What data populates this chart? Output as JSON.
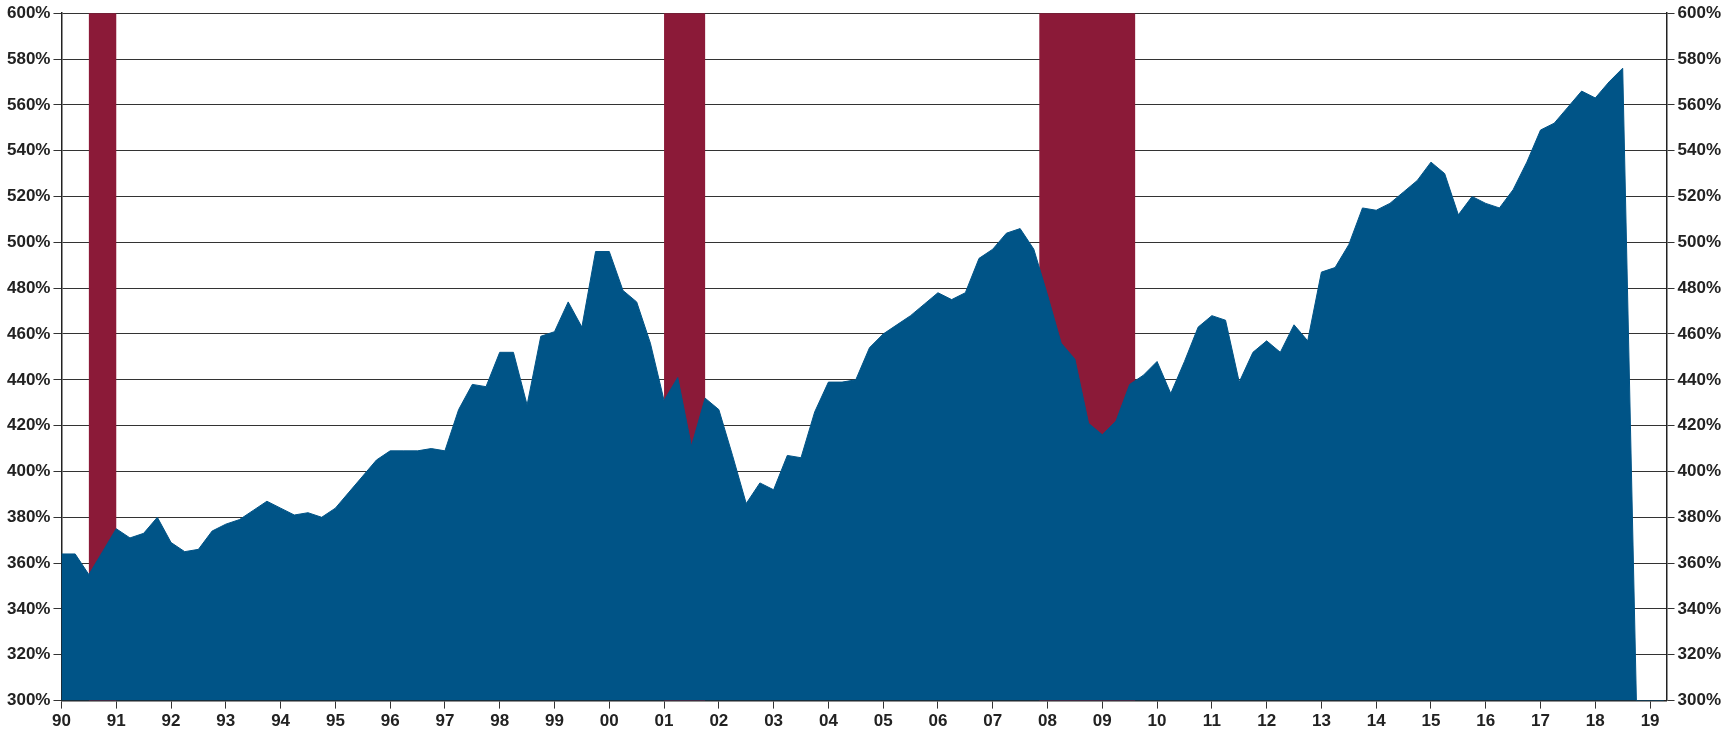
{
  "chart_data": {
    "type": "area",
    "x": [
      1990,
      1990.25,
      1990.5,
      1990.75,
      1991,
      1991.25,
      1991.5,
      1991.75,
      1992,
      1992.25,
      1992.5,
      1992.75,
      1993,
      1993.25,
      1993.5,
      1993.75,
      1994,
      1994.25,
      1994.5,
      1994.75,
      1995,
      1995.25,
      1995.5,
      1995.75,
      1996,
      1996.25,
      1996.5,
      1996.75,
      1997,
      1997.25,
      1997.5,
      1997.75,
      1998,
      1998.25,
      1998.5,
      1998.75,
      1999,
      1999.25,
      1999.5,
      1999.75,
      2000,
      2000.25,
      2000.5,
      2000.75,
      2001,
      2001.25,
      2001.5,
      2001.75,
      2002,
      2002.25,
      2002.5,
      2002.75,
      2003,
      2003.25,
      2003.5,
      2003.75,
      2004,
      2004.25,
      2004.5,
      2004.75,
      2005,
      2005.25,
      2005.5,
      2005.75,
      2006,
      2006.25,
      2006.5,
      2006.75,
      2007,
      2007.25,
      2007.5,
      2007.75,
      2008,
      2008.25,
      2008.5,
      2008.75,
      2009,
      2009.25,
      2009.5,
      2009.75,
      2010,
      2010.25,
      2010.5,
      2010.75,
      2011,
      2011.25,
      2011.5,
      2011.75,
      2012,
      2012.25,
      2012.5,
      2012.75,
      2013,
      2013.25,
      2013.5,
      2013.75,
      2014,
      2014.25,
      2014.5,
      2014.75,
      2015,
      2015.25,
      2015.5,
      2015.75,
      2016,
      2016.25,
      2016.5,
      2016.75,
      2017,
      2017.25,
      2017.5,
      2017.75,
      2018,
      2018.25,
      2018.5,
      2018.75,
      2019,
      2019.25
    ],
    "series": [
      {
        "color": "#005487",
        "values": [
          364,
          364,
          355,
          365,
          375,
          371,
          373,
          380,
          369,
          365,
          366,
          374,
          377,
          379,
          383,
          387,
          384,
          381,
          382,
          380,
          384,
          391,
          398,
          405,
          409,
          409,
          409,
          410,
          409,
          427,
          438,
          437,
          452,
          452,
          429,
          459,
          461,
          474,
          463,
          496,
          496,
          479,
          474,
          456,
          431,
          441,
          411,
          432,
          427,
          407,
          386,
          395,
          392,
          407,
          406,
          426,
          439,
          439,
          440,
          454,
          460,
          464,
          468,
          473,
          478,
          475,
          478,
          493,
          497,
          504,
          506,
          497,
          477,
          456,
          449,
          421,
          416,
          422,
          438,
          442,
          448,
          434,
          448,
          463,
          468,
          466,
          439,
          452,
          457,
          452,
          464,
          457,
          487,
          489,
          499,
          515,
          514,
          517,
          522,
          527,
          535,
          530,
          512,
          520,
          517,
          515,
          523,
          535,
          549,
          552,
          559,
          566,
          563,
          570,
          576,
          300,
          300,
          300
        ]
      }
    ],
    "bands": [
      {
        "axis": "x",
        "from": 1990.5,
        "to": 1991,
        "color": "#8b1a38"
      },
      {
        "axis": "x",
        "from": 2001,
        "to": 2001.75,
        "color": "#8b1a38"
      },
      {
        "axis": "x",
        "from": 2007.85,
        "to": 2009.6,
        "color": "#8b1a38"
      }
    ],
    "xlim": [
      1990,
      2019.3
    ],
    "xticks": [
      {
        "value": 1990,
        "label": "90"
      },
      {
        "value": 1991,
        "label": "91"
      },
      {
        "value": 1992,
        "label": "92"
      },
      {
        "value": 1993,
        "label": "93"
      },
      {
        "value": 1994,
        "label": "94"
      },
      {
        "value": 1995,
        "label": "95"
      },
      {
        "value": 1996,
        "label": "96"
      },
      {
        "value": 1997,
        "label": "97"
      },
      {
        "value": 1998,
        "label": "98"
      },
      {
        "value": 1999,
        "label": "99"
      },
      {
        "value": 2000,
        "label": "00"
      },
      {
        "value": 2001,
        "label": "01"
      },
      {
        "value": 2002,
        "label": "02"
      },
      {
        "value": 2003,
        "label": "03"
      },
      {
        "value": 2004,
        "label": "04"
      },
      {
        "value": 2005,
        "label": "05"
      },
      {
        "value": 2006,
        "label": "06"
      },
      {
        "value": 2007,
        "label": "07"
      },
      {
        "value": 2008,
        "label": "08"
      },
      {
        "value": 2009,
        "label": "09"
      },
      {
        "value": 2010,
        "label": "10"
      },
      {
        "value": 2011,
        "label": "11"
      },
      {
        "value": 2012,
        "label": "12"
      },
      {
        "value": 2013,
        "label": "13"
      },
      {
        "value": 2014,
        "label": "14"
      },
      {
        "value": 2015,
        "label": "15"
      },
      {
        "value": 2016,
        "label": "16"
      },
      {
        "value": 2017,
        "label": "17"
      },
      {
        "value": 2018,
        "label": "18"
      },
      {
        "value": 2019,
        "label": "19"
      }
    ],
    "ylim": [
      300,
      600
    ],
    "yticks": [
      {
        "value": 300,
        "label": "300%"
      },
      {
        "value": 320,
        "label": "320%"
      },
      {
        "value": 340,
        "label": "340%"
      },
      {
        "value": 360,
        "label": "360%"
      },
      {
        "value": 380,
        "label": "380%"
      },
      {
        "value": 400,
        "label": "400%"
      },
      {
        "value": 420,
        "label": "420%"
      },
      {
        "value": 440,
        "label": "440%"
      },
      {
        "value": 460,
        "label": "460%"
      },
      {
        "value": 480,
        "label": "480%"
      },
      {
        "value": 500,
        "label": "500%"
      },
      {
        "value": 520,
        "label": "520%"
      },
      {
        "value": 540,
        "label": "540%"
      },
      {
        "value": 560,
        "label": "560%"
      },
      {
        "value": 580,
        "label": "580%"
      },
      {
        "value": 600,
        "label": "600%"
      }
    ],
    "y2lim": [
      300,
      600
    ],
    "y2ticks": [
      {
        "value": 300,
        "label": "300%"
      },
      {
        "value": 320,
        "label": "320%"
      },
      {
        "value": 340,
        "label": "340%"
      },
      {
        "value": 360,
        "label": "360%"
      },
      {
        "value": 380,
        "label": "380%"
      },
      {
        "value": 400,
        "label": "400%"
      },
      {
        "value": 420,
        "label": "420%"
      },
      {
        "value": 440,
        "label": "440%"
      },
      {
        "value": 460,
        "label": "460%"
      },
      {
        "value": 480,
        "label": "480%"
      },
      {
        "value": 500,
        "label": "500%"
      },
      {
        "value": 520,
        "label": "520%"
      },
      {
        "value": 540,
        "label": "540%"
      },
      {
        "value": 560,
        "label": "560%"
      },
      {
        "value": 580,
        "label": "580%"
      },
      {
        "value": 600,
        "label": "600%"
      }
    ],
    "grid": "y",
    "legend": false,
    "marker": "none"
  }
}
